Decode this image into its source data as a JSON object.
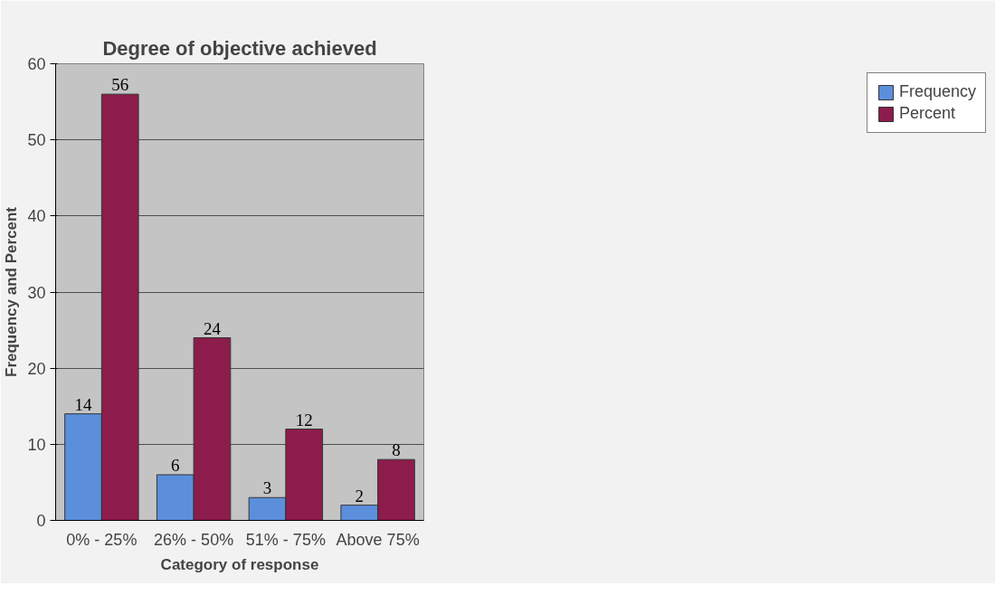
{
  "chart_data": {
    "type": "bar",
    "title": "Degree of objective achieved",
    "xlabel": "Category of response",
    "ylabel": "Frequency and Percent",
    "categories": [
      "0% - 25%",
      "26% - 50%",
      "51% - 75%",
      "Above 75%"
    ],
    "series": [
      {
        "name": "Frequency",
        "color": "#5b8fdb",
        "values": [
          14,
          6,
          3,
          2
        ]
      },
      {
        "name": "Percent",
        "color": "#8c1c4c",
        "values": [
          56,
          24,
          12,
          8
        ]
      }
    ],
    "ylim": [
      0,
      60
    ],
    "yticks": [
      0,
      10,
      20,
      30,
      40,
      50,
      60
    ],
    "grid": "y",
    "legend": "right",
    "data_labels": true
  }
}
